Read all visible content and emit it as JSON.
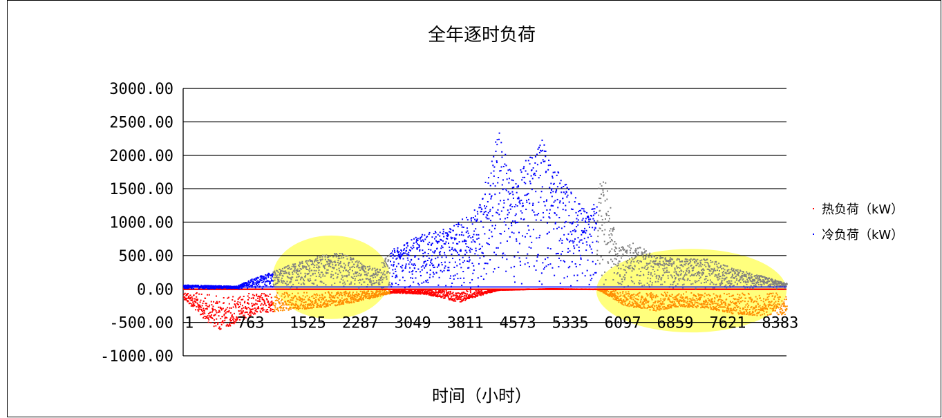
{
  "chart_data": {
    "type": "scatter",
    "title": "全年逐时负荷",
    "xlabel": "时间（小时）",
    "ylabel": "",
    "ylim": [
      -1000,
      3000
    ],
    "y_ticks": [
      "3000.00",
      "2500.00",
      "2000.00",
      "1500.00",
      "1000.00",
      "500.00",
      "0.00",
      "-500.00",
      "-1000.00"
    ],
    "x_tick_labels": [
      "1",
      "763",
      "1525",
      "2287",
      "3049",
      "3811",
      "4573",
      "5335",
      "6097",
      "6859",
      "7621",
      "8383"
    ],
    "xlim": [
      1,
      8760
    ],
    "grid": "horizontal",
    "legend_position": "right",
    "series": [
      {
        "name": "热负荷（kW）",
        "color": "#ff0000",
        "highlight_color": "#ff8c00",
        "envelope": [
          [
            1,
            -150
          ],
          [
            300,
            -450
          ],
          [
            500,
            -620
          ],
          [
            763,
            -520
          ],
          [
            1000,
            -380
          ],
          [
            1525,
            -320
          ],
          [
            2000,
            -280
          ],
          [
            2287,
            -250
          ],
          [
            2800,
            -120
          ],
          [
            3049,
            -60
          ],
          [
            3500,
            -80
          ],
          [
            3811,
            -150
          ],
          [
            4000,
            -200
          ],
          [
            4300,
            -100
          ],
          [
            4573,
            -20
          ],
          [
            5335,
            0
          ],
          [
            6000,
            -10
          ],
          [
            6097,
            -60
          ],
          [
            6400,
            -250
          ],
          [
            6859,
            -330
          ],
          [
            7200,
            -260
          ],
          [
            7621,
            -300
          ],
          [
            8000,
            -380
          ],
          [
            8383,
            -400
          ],
          [
            8760,
            -380
          ]
        ]
      },
      {
        "name": "冷负荷（kW）",
        "color": "#0000ff",
        "highlight_color": "#808080",
        "envelope": [
          [
            1,
            60
          ],
          [
            763,
            40
          ],
          [
            1000,
            150
          ],
          [
            1525,
            350
          ],
          [
            2000,
            500
          ],
          [
            2287,
            550
          ],
          [
            2800,
            300
          ],
          [
            3049,
            600
          ],
          [
            3400,
            800
          ],
          [
            3811,
            900
          ],
          [
            4000,
            1000
          ],
          [
            4300,
            1300
          ],
          [
            4573,
            2400
          ],
          [
            4800,
            1600
          ],
          [
            5000,
            2000
          ],
          [
            5200,
            2300
          ],
          [
            5335,
            1900
          ],
          [
            5600,
            1500
          ],
          [
            5900,
            1100
          ],
          [
            6097,
            1800
          ],
          [
            6300,
            600
          ],
          [
            6500,
            700
          ],
          [
            6859,
            500
          ],
          [
            7200,
            450
          ],
          [
            7621,
            450
          ],
          [
            8000,
            300
          ],
          [
            8383,
            200
          ],
          [
            8760,
            80
          ]
        ]
      }
    ],
    "highlight_regions": [
      {
        "x_range": [
          1300,
          3000
        ],
        "y_range": [
          -450,
          800
        ],
        "color": "#ffff66"
      },
      {
        "x_range": [
          6000,
          8760
        ],
        "y_range": [
          -650,
          600
        ],
        "color": "#ffff66"
      }
    ]
  }
}
